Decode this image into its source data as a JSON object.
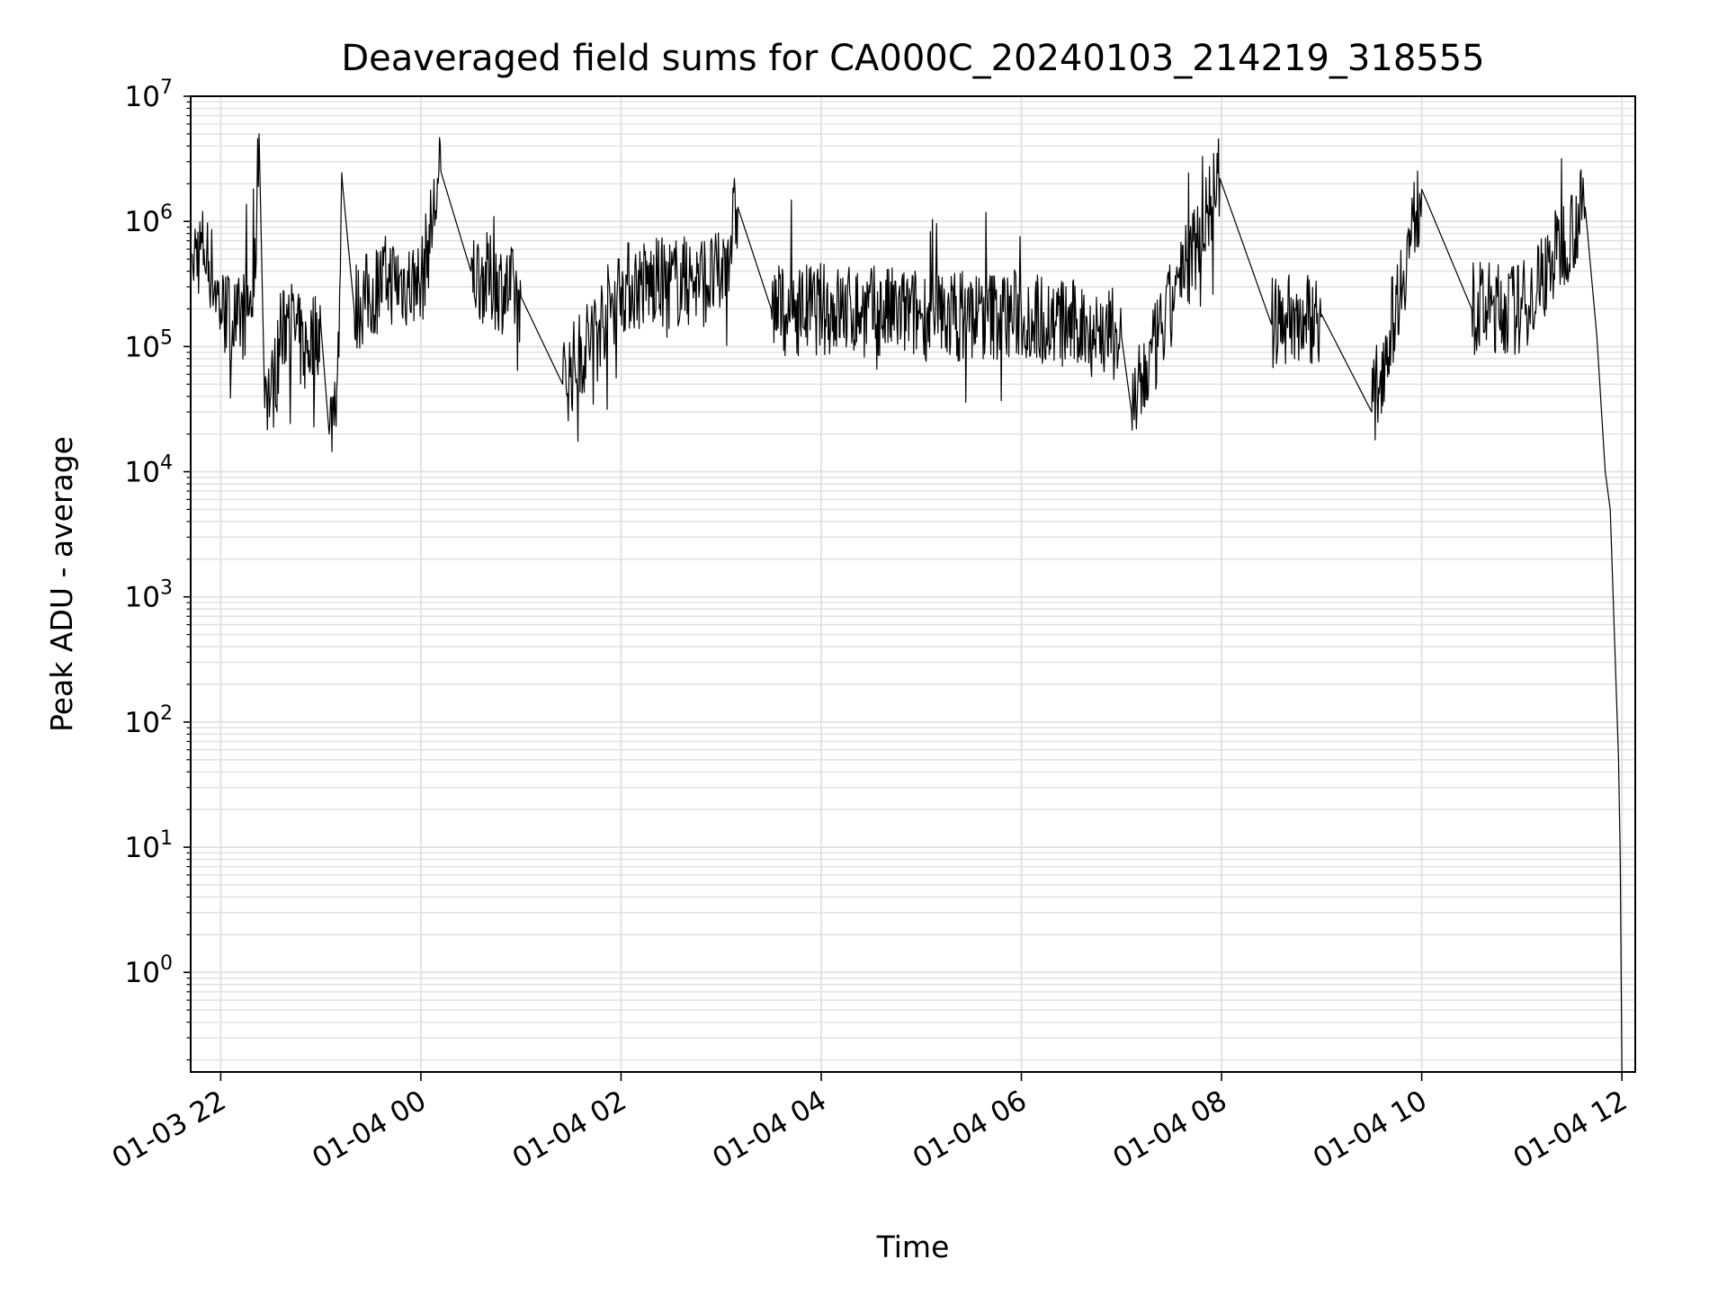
{
  "chart_data": {
    "type": "line",
    "title": "Deaveraged field sums for CA000C_20240103_214219_318555",
    "xlabel": "Time",
    "ylabel": "Peak ADU - average",
    "yscale": "log",
    "ylim": [
      0.16,
      10000000
    ],
    "xlim": [
      "2024-01-03 21:42",
      "2024-01-04 12:08"
    ],
    "grid": true,
    "x_ticks": [
      "01-03 22",
      "01-04 00",
      "01-04 02",
      "01-04 04",
      "01-04 06",
      "01-04 08",
      "01-04 10",
      "01-04 12"
    ],
    "y_ticks": [
      {
        "base": "10",
        "exp": "0"
      },
      {
        "base": "10",
        "exp": "1"
      },
      {
        "base": "10",
        "exp": "2"
      },
      {
        "base": "10",
        "exp": "3"
      },
      {
        "base": "10",
        "exp": "4"
      },
      {
        "base": "10",
        "exp": "5"
      },
      {
        "base": "10",
        "exp": "6"
      },
      {
        "base": "10",
        "exp": "7"
      }
    ],
    "series": [
      {
        "color": "#000000",
        "points": [
          [
            "2024-01-03 21:43",
            550000
          ],
          [
            "2024-01-03 21:50",
            600000
          ],
          [
            "2024-01-03 21:55",
            400000
          ],
          [
            "2024-01-03 22:00",
            200000
          ],
          [
            "2024-01-03 22:10",
            150000
          ],
          [
            "2024-01-03 22:20",
            250000
          ],
          [
            "2024-01-03 22:23",
            5000000
          ],
          [
            "2024-01-03 22:26",
            60000
          ],
          [
            "2024-01-03 22:30",
            40000
          ],
          [
            "2024-01-03 22:40",
            180000
          ],
          [
            "2024-01-03 22:50",
            90000
          ],
          [
            "2024-01-03 23:00",
            150000
          ],
          [
            "2024-01-03 23:05",
            20000
          ],
          [
            "2024-01-03 23:10",
            60000
          ],
          [
            "2024-01-03 23:13",
            2000000
          ],
          [
            "2024-01-03 23:20",
            200000
          ],
          [
            "2024-01-03 23:40",
            350000
          ],
          [
            "2024-01-04 00:00",
            300000
          ],
          [
            "2024-01-04 00:12",
            2500000
          ],
          [
            "2024-01-04 00:30",
            400000
          ],
          [
            "2024-01-04 01:00",
            250000
          ],
          [
            "2024-01-04 01:25",
            50000
          ],
          [
            "2024-01-04 02:00",
            300000
          ],
          [
            "2024-01-04 03:00",
            350000
          ],
          [
            "2024-01-04 03:10",
            1300000
          ],
          [
            "2024-01-04 03:30",
            200000
          ],
          [
            "2024-01-04 04:00",
            200000
          ],
          [
            "2024-01-04 05:00",
            180000
          ],
          [
            "2024-01-04 06:00",
            180000
          ],
          [
            "2024-01-04 07:00",
            120000
          ],
          [
            "2024-01-04 07:06",
            30000
          ],
          [
            "2024-01-04 07:59",
            2200000
          ],
          [
            "2024-01-04 08:30",
            150000
          ],
          [
            "2024-01-04 09:00",
            180000
          ],
          [
            "2024-01-04 09:30",
            30000
          ],
          [
            "2024-01-04 10:00",
            1800000
          ],
          [
            "2024-01-04 10:30",
            200000
          ],
          [
            "2024-01-04 11:00",
            200000
          ],
          [
            "2024-01-04 11:38",
            1300000
          ],
          [
            "2024-01-04 11:45",
            120000
          ],
          [
            "2024-01-04 11:50",
            10000
          ],
          [
            "2024-01-04 11:53",
            5000
          ],
          [
            "2024-01-04 11:58",
            50
          ],
          [
            "2024-01-04 11:59",
            8
          ],
          [
            "2024-01-04 12:00",
            0.16
          ]
        ]
      }
    ]
  }
}
